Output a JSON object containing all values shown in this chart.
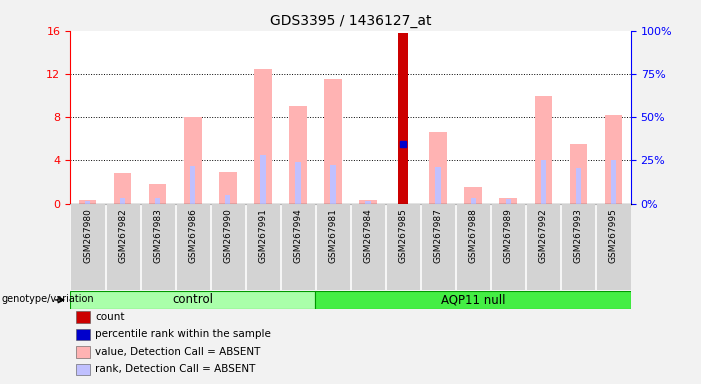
{
  "title": "GDS3395 / 1436127_at",
  "samples": [
    "GSM267980",
    "GSM267982",
    "GSM267983",
    "GSM267986",
    "GSM267990",
    "GSM267991",
    "GSM267994",
    "GSM267981",
    "GSM267984",
    "GSM267985",
    "GSM267987",
    "GSM267988",
    "GSM267989",
    "GSM267992",
    "GSM267993",
    "GSM267995"
  ],
  "n_control": 7,
  "n_aqp11": 9,
  "pink_bars": [
    0.3,
    2.8,
    1.8,
    8.0,
    2.9,
    12.5,
    9.0,
    11.5,
    0.3,
    15.8,
    6.6,
    1.5,
    0.5,
    10.0,
    5.5,
    8.2
  ],
  "blue_bars": [
    0.25,
    0.5,
    0.5,
    3.5,
    0.8,
    4.5,
    3.8,
    3.6,
    0.2,
    5.5,
    3.4,
    0.5,
    0.4,
    4.0,
    3.3,
    4.0
  ],
  "red_bar_index": 9,
  "red_bar_value": 15.8,
  "blue_dot_index": 9,
  "blue_dot_value": 5.5,
  "ylim_left": [
    0,
    16
  ],
  "yticks_left": [
    0,
    4,
    8,
    12,
    16
  ],
  "ylim_right": [
    0,
    100
  ],
  "yticks_right": [
    0,
    25,
    50,
    75,
    100
  ],
  "ytick_labels_right": [
    "0%",
    "25%",
    "50%",
    "75%",
    "100%"
  ],
  "bg_color": "#f2f2f2",
  "plot_bg": "#ffffff",
  "control_color": "#aaffaa",
  "aqp11_color": "#44ee44",
  "pink_color": "#ffb3b3",
  "blue_bar_color": "#c0c0ff",
  "red_color": "#cc0000",
  "blue_dot_color": "#0000cc",
  "legend_items": [
    {
      "label": "count",
      "color": "#cc0000"
    },
    {
      "label": "percentile rank within the sample",
      "color": "#0000cc"
    },
    {
      "label": "value, Detection Call = ABSENT",
      "color": "#ffb3b3"
    },
    {
      "label": "rank, Detection Call = ABSENT",
      "color": "#c0c0ff"
    }
  ],
  "genotype_label": "genotype/variation"
}
